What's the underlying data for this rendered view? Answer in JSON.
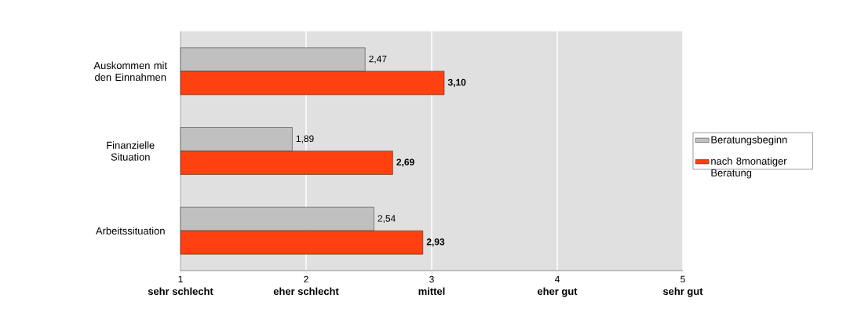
{
  "chart_data": {
    "type": "bar",
    "orientation": "horizontal",
    "categories": [
      "Auskommen mit den Einnahmen",
      "Finanzielle Situation",
      "Arbeitssituation"
    ],
    "series": [
      {
        "name": "Beratungsbeginn",
        "color": "#c0c0c0",
        "values": [
          2.47,
          1.89,
          2.54
        ],
        "value_labels": [
          "2,47",
          "1,89",
          "2,54"
        ]
      },
      {
        "name": "nach 8monatiger Beratung",
        "color": "#ff4010",
        "values": [
          3.1,
          2.69,
          2.93
        ],
        "value_labels": [
          "3,10",
          "2,69",
          "2,93"
        ]
      }
    ],
    "xlim": [
      1,
      5
    ],
    "xticks": [
      1,
      2,
      3,
      4,
      5
    ],
    "annotations": [
      "sehr schlecht",
      "eher schlecht",
      "mittel",
      "eher gut",
      "sehr gut"
    ],
    "grid": "x",
    "legend": "right"
  }
}
